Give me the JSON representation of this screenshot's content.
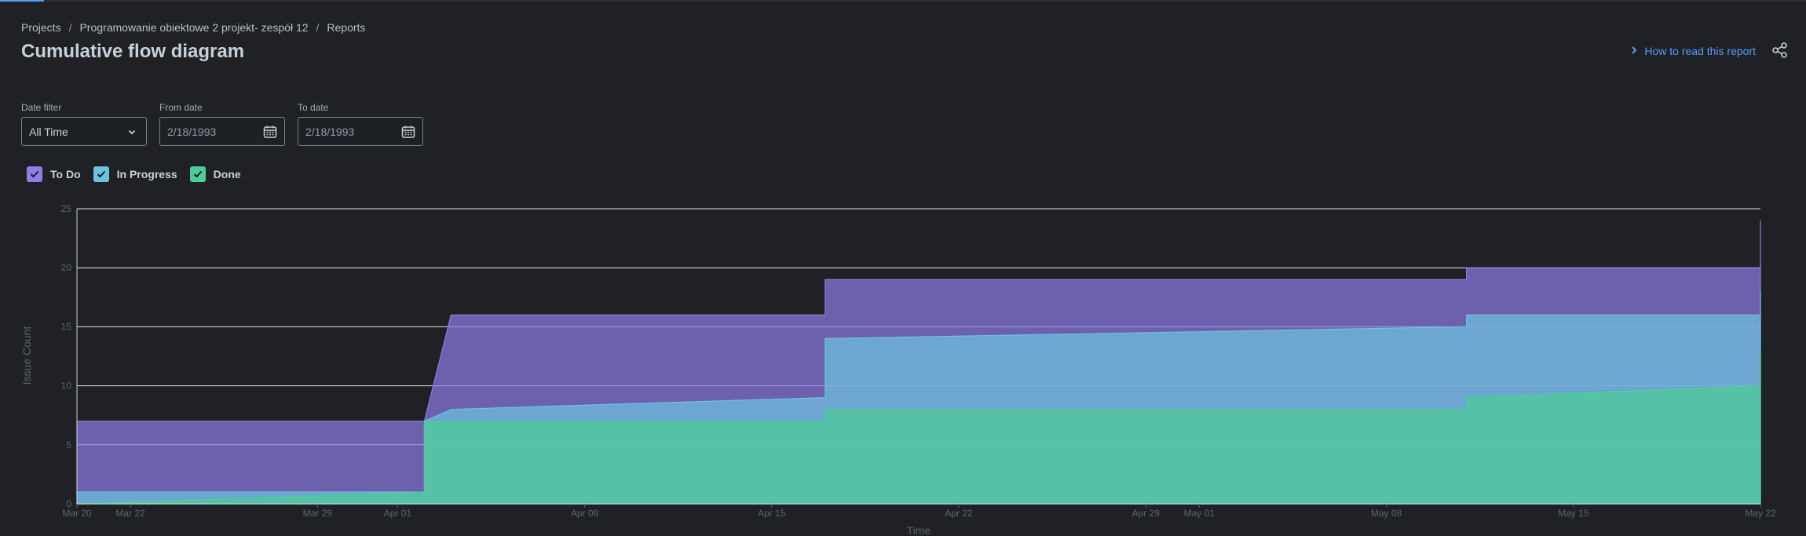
{
  "breadcrumb": {
    "items": [
      "Projects",
      "Programowanie obiektowe 2 projekt- zespół 12",
      "Reports"
    ]
  },
  "page": {
    "title": "Cumulative flow diagram",
    "help_link": "How to read this report"
  },
  "filters": {
    "date_filter": {
      "label": "Date filter",
      "value": "All Time"
    },
    "from_date": {
      "label": "From date",
      "value": "2/18/1993"
    },
    "to_date": {
      "label": "To date",
      "value": "2/18/1993"
    }
  },
  "legend": {
    "todo": "To Do",
    "in_progress": "In Progress",
    "done": "Done"
  },
  "colors": {
    "todo": "#8f7ee7",
    "in_progress": "#6cc3e0",
    "done": "#4bce97",
    "accent": "#579dff"
  },
  "chart_data": {
    "type": "area",
    "stacked": true,
    "x_range": [
      "2024-03-20",
      "2024-05-22"
    ],
    "xlabel": "Time",
    "ylabel": "Issue Count",
    "ylim": [
      0,
      25
    ],
    "y_ticks": [
      "0",
      "5",
      "10",
      "15",
      "20",
      "25"
    ],
    "x_ticks": [
      {
        "date": "2024-03-20",
        "label": "Mar 20"
      },
      {
        "date": "2024-03-22",
        "label": "Mar 22"
      },
      {
        "date": "2024-03-29",
        "label": "Mar 29"
      },
      {
        "date": "2024-04-01",
        "label": "Apr 01"
      },
      {
        "date": "2024-04-08",
        "label": "Apr 08"
      },
      {
        "date": "2024-04-15",
        "label": "Apr 15"
      },
      {
        "date": "2024-04-22",
        "label": "Apr 22"
      },
      {
        "date": "2024-04-29",
        "label": "Apr 29"
      },
      {
        "date": "2024-05-01",
        "label": "May 01"
      },
      {
        "date": "2024-05-08",
        "label": "May 08"
      },
      {
        "date": "2024-05-15",
        "label": "May 15"
      },
      {
        "date": "2024-05-22",
        "label": "May 22"
      }
    ],
    "grid": true,
    "series": [
      {
        "name": "To Do",
        "points": [
          [
            "2024-03-20",
            7
          ],
          [
            "2024-04-02",
            7
          ],
          [
            "2024-04-03",
            16
          ],
          [
            "2024-04-17",
            16
          ],
          [
            "2024-04-17",
            19
          ],
          [
            "2024-05-11",
            19
          ],
          [
            "2024-05-11",
            20
          ],
          [
            "2024-05-22",
            20
          ],
          [
            "2024-05-22",
            24
          ]
        ]
      },
      {
        "name": "In Progress",
        "points": [
          [
            "2024-03-20",
            1
          ],
          [
            "2024-04-02",
            1
          ],
          [
            "2024-04-02",
            7
          ],
          [
            "2024-04-03",
            8
          ],
          [
            "2024-04-17",
            9
          ],
          [
            "2024-04-17",
            14
          ],
          [
            "2024-05-11",
            15
          ],
          [
            "2024-05-11",
            16
          ],
          [
            "2024-05-22",
            16
          ],
          [
            "2024-05-22",
            18
          ]
        ]
      },
      {
        "name": "Done",
        "points": [
          [
            "2024-03-20",
            0
          ],
          [
            "2024-04-02",
            1
          ],
          [
            "2024-04-02",
            7
          ],
          [
            "2024-04-17",
            7
          ],
          [
            "2024-04-17",
            8
          ],
          [
            "2024-05-11",
            8
          ],
          [
            "2024-05-11",
            9
          ],
          [
            "2024-05-22",
            10
          ],
          [
            "2024-05-22",
            13
          ]
        ]
      }
    ]
  }
}
